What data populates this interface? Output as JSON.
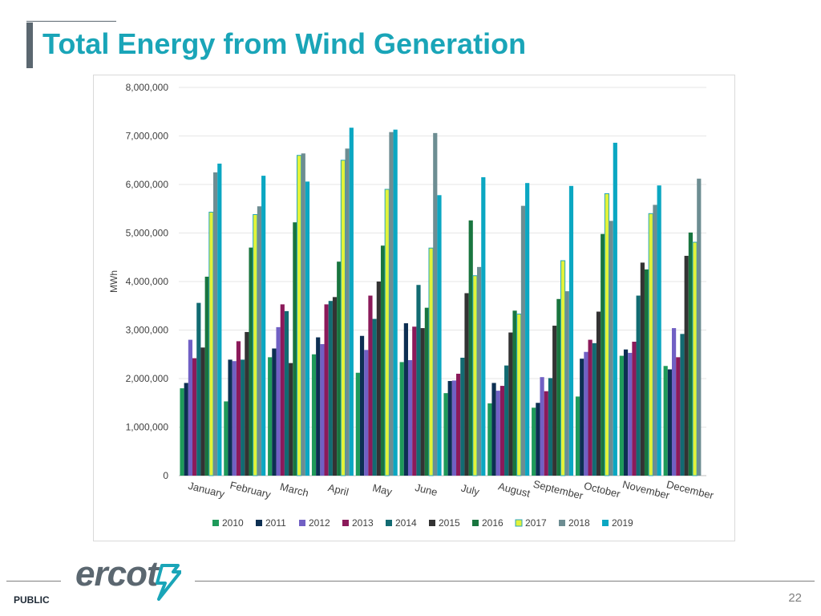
{
  "slide": {
    "title": "Total Energy from Wind Generation",
    "footer_label": "PUBLIC",
    "page_number": "22",
    "logo_text": "ercot"
  },
  "colors": {
    "title": "#1aa5b8",
    "accent_bar": "#5b6770"
  },
  "chart_data": {
    "type": "bar",
    "title": "",
    "xlabel": "",
    "ylabel": "MWh",
    "ylim": [
      0,
      8000000
    ],
    "yticks": [
      0,
      1000000,
      2000000,
      3000000,
      4000000,
      5000000,
      6000000,
      7000000,
      8000000
    ],
    "ytick_labels": [
      "0",
      "1,000,000",
      "2,000,000",
      "3,000,000",
      "4,000,000",
      "5,000,000",
      "6,000,000",
      "7,000,000",
      "8,000,000"
    ],
    "grid": true,
    "legend_position": "bottom",
    "categories": [
      "January",
      "February",
      "March",
      "April",
      "May",
      "June",
      "July",
      "August",
      "September",
      "October",
      "November",
      "December"
    ],
    "series": [
      {
        "name": "2010",
        "color": "#1e9a5a",
        "values": [
          1800000,
          1530000,
          2440000,
          2500000,
          2120000,
          2340000,
          1700000,
          1490000,
          1400000,
          1630000,
          2470000,
          2260000
        ]
      },
      {
        "name": "2011",
        "color": "#0d2f52",
        "values": [
          1910000,
          2390000,
          2620000,
          2850000,
          2880000,
          3140000,
          1950000,
          1910000,
          1500000,
          2410000,
          2600000,
          2190000
        ]
      },
      {
        "name": "2012",
        "color": "#7160c4",
        "values": [
          2800000,
          2360000,
          3060000,
          2710000,
          2590000,
          2380000,
          1960000,
          1750000,
          2030000,
          2550000,
          2530000,
          3040000
        ]
      },
      {
        "name": "2013",
        "color": "#8b1a5a",
        "values": [
          2420000,
          2770000,
          3530000,
          3530000,
          3710000,
          3070000,
          2100000,
          1850000,
          1740000,
          2800000,
          2760000,
          2440000
        ]
      },
      {
        "name": "2014",
        "color": "#126b72",
        "values": [
          3560000,
          2390000,
          3390000,
          3600000,
          3230000,
          3930000,
          2430000,
          2270000,
          2010000,
          2730000,
          3710000,
          2920000
        ]
      },
      {
        "name": "2015",
        "color": "#333333",
        "values": [
          2640000,
          2960000,
          2320000,
          3680000,
          4000000,
          3040000,
          3760000,
          2950000,
          3090000,
          3380000,
          4390000,
          4530000
        ]
      },
      {
        "name": "2016",
        "color": "#19753f",
        "values": [
          4100000,
          4700000,
          5220000,
          4410000,
          4740000,
          3460000,
          5260000,
          3400000,
          3640000,
          4980000,
          4250000,
          5010000
        ]
      },
      {
        "name": "2017",
        "color": "#e2f23a",
        "values": [
          5430000,
          5380000,
          6600000,
          6500000,
          5900000,
          4690000,
          4120000,
          3330000,
          4430000,
          5810000,
          5400000,
          4810000
        ]
      },
      {
        "name": "2018",
        "color": "#6d8d92",
        "values": [
          6250000,
          5550000,
          6640000,
          6740000,
          7080000,
          7060000,
          4300000,
          5560000,
          3800000,
          5250000,
          5580000,
          6120000
        ]
      },
      {
        "name": "2019",
        "color": "#0ba7c2",
        "values": [
          6430000,
          6180000,
          6060000,
          7170000,
          7130000,
          5780000,
          6150000,
          6030000,
          5970000,
          6860000,
          5980000,
          null
        ]
      }
    ]
  }
}
